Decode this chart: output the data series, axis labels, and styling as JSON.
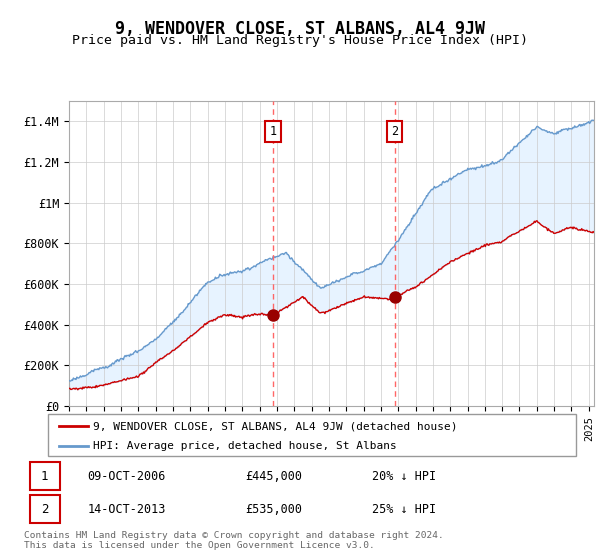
{
  "title": "9, WENDOVER CLOSE, ST ALBANS, AL4 9JW",
  "subtitle": "Price paid vs. HM Land Registry's House Price Index (HPI)",
  "title_fontsize": 12,
  "subtitle_fontsize": 9.5,
  "red_line_color": "#cc0000",
  "blue_line_color": "#6699cc",
  "blue_fill_color": "#ddeeff",
  "marker_color": "#990000",
  "annotation_box_color": "#cc0000",
  "vline_color": "#ff6666",
  "ylabel_ticks": [
    "£0",
    "£200K",
    "£400K",
    "£600K",
    "£800K",
    "£1M",
    "£1.2M",
    "£1.4M"
  ],
  "ytick_values": [
    0,
    200000,
    400000,
    600000,
    800000,
    1000000,
    1200000,
    1400000
  ],
  "ylim": [
    0,
    1500000
  ],
  "xlim_start": 1995.0,
  "xlim_end": 2025.3,
  "purchase1_x": 2006.77,
  "purchase1_y": 445000,
  "purchase1_label": "1",
  "purchase2_x": 2013.79,
  "purchase2_y": 535000,
  "purchase2_label": "2",
  "legend_line1": "9, WENDOVER CLOSE, ST ALBANS, AL4 9JW (detached house)",
  "legend_line2": "HPI: Average price, detached house, St Albans",
  "table_row1": [
    "1",
    "09-OCT-2006",
    "£445,000",
    "20% ↓ HPI"
  ],
  "table_row2": [
    "2",
    "14-OCT-2013",
    "£535,000",
    "25% ↓ HPI"
  ],
  "footer": "Contains HM Land Registry data © Crown copyright and database right 2024.\nThis data is licensed under the Open Government Licence v3.0.",
  "background_color": "#ffffff",
  "grid_color": "#cccccc"
}
